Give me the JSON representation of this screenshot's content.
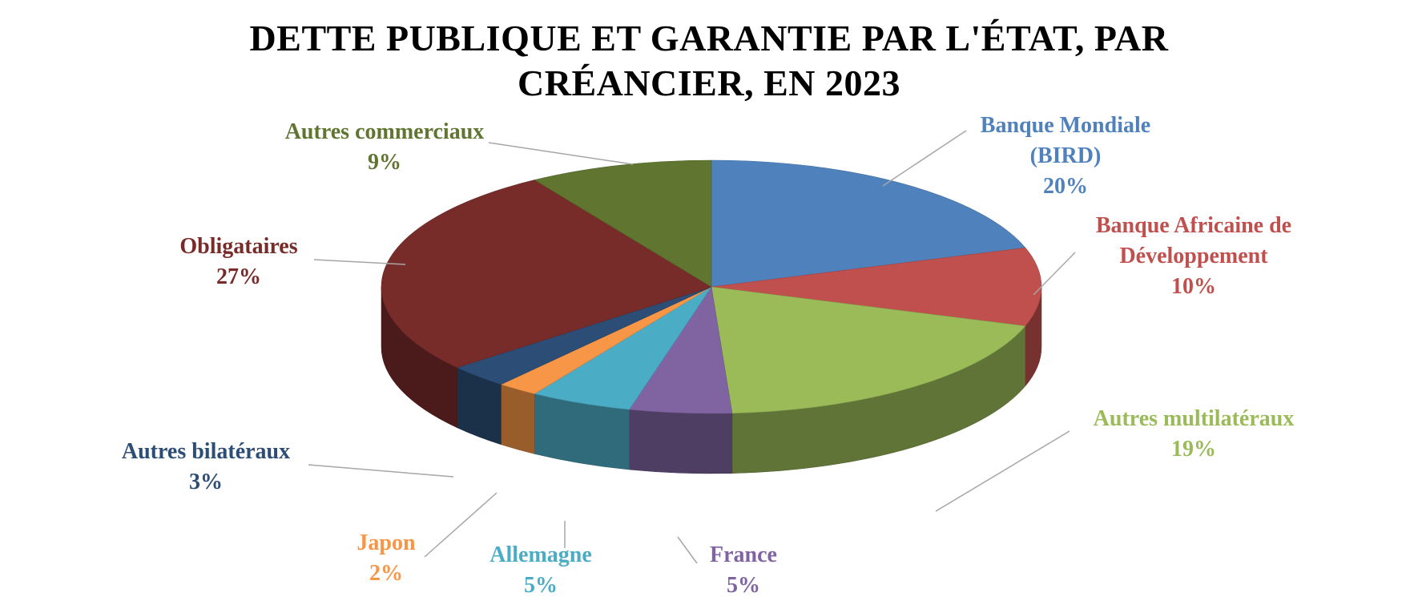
{
  "chart_data": {
    "type": "pie",
    "variant": "3d",
    "title": "DETTE PUBLIQUE ET GARANTIE PAR L'ÉTAT, PAR CRÉANCIER, EN 2023",
    "title_lines": [
      "DETTE PUBLIQUE ET GARANTIE PAR L'ÉTAT, PAR",
      "CRÉANCIER, EN 2023"
    ],
    "legend": "none",
    "slices": [
      {
        "label": "Banque Mondiale (BIRD)",
        "label_lines": [
          "Banque Mondiale",
          "(BIRD)"
        ],
        "value": 20,
        "value_label": "20%",
        "color": "#4F81BD"
      },
      {
        "label": "Banque Africaine de Développement",
        "label_lines": [
          "Banque Africaine de",
          "Développement"
        ],
        "value": 10,
        "value_label": "10%",
        "color": "#C0504D"
      },
      {
        "label": "Autres multilatéraux",
        "label_lines": [
          "Autres multilatéraux"
        ],
        "value": 19,
        "value_label": "19%",
        "color": "#9BBB59"
      },
      {
        "label": "France",
        "label_lines": [
          "France"
        ],
        "value": 5,
        "value_label": "5%",
        "color": "#8064A2"
      },
      {
        "label": "Allemagne",
        "label_lines": [
          "Allemagne"
        ],
        "value": 5,
        "value_label": "5%",
        "color": "#4BACC6"
      },
      {
        "label": "Japon",
        "label_lines": [
          "Japon"
        ],
        "value": 2,
        "value_label": "2%",
        "color": "#F79646"
      },
      {
        "label": "Autres bilatéraux",
        "label_lines": [
          "Autres bilatéraux"
        ],
        "value": 3,
        "value_label": "3%",
        "color": "#2C4D75"
      },
      {
        "label": "Obligataires",
        "label_lines": [
          "Obligataires"
        ],
        "value": 27,
        "value_label": "27%",
        "color": "#772C2A"
      },
      {
        "label": "Autres commerciaux",
        "label_lines": [
          "Autres commerciaux"
        ],
        "value": 9,
        "value_label": "9%",
        "color": "#5F7530"
      }
    ]
  }
}
